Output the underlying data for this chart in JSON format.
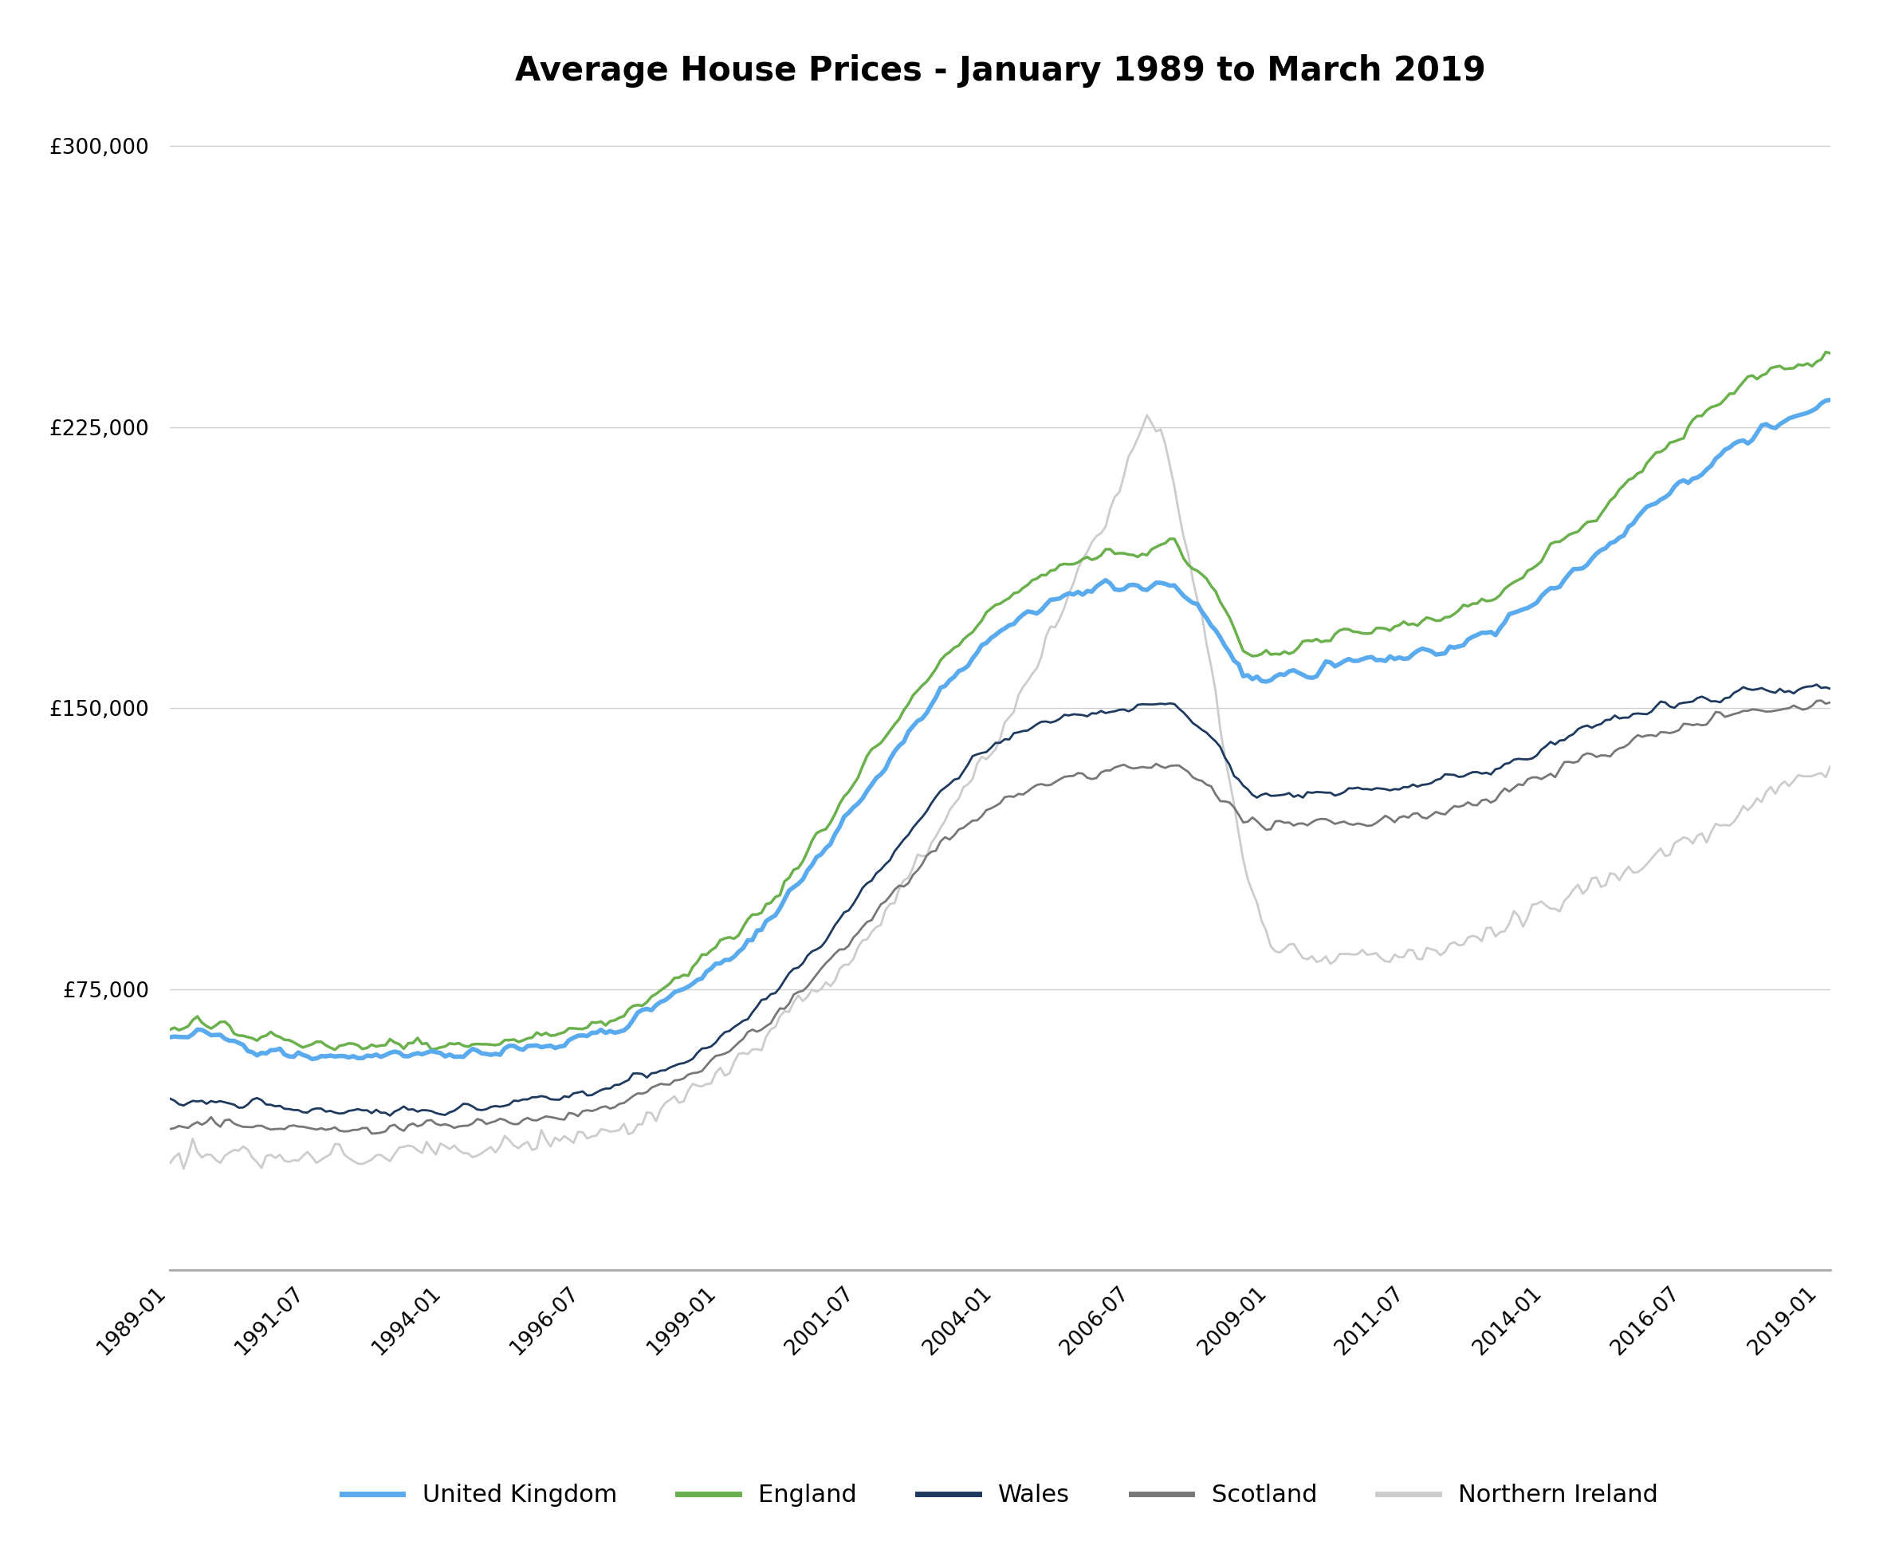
{
  "title": "Average House Prices - January 1989 to March 2019",
  "title_fontsize": 30,
  "background_color": "#ffffff",
  "ylim": [
    0,
    310000
  ],
  "grid_color": "#cccccc",
  "legend_labels": [
    "United Kingdom",
    "England",
    "Wales",
    "Scotland",
    "Northern Ireland"
  ],
  "legend_colors": [
    "#5aabee",
    "#6ab04c",
    "#1e3a5f",
    "#777777",
    "#cccccc"
  ],
  "line_widths": [
    4.0,
    2.5,
    2.0,
    2.0,
    2.0
  ],
  "tick_label_fontsize": 19,
  "legend_fontsize": 22,
  "xtick_labels": [
    "1989-01",
    "1991-07",
    "1994-01",
    "1996-07",
    "1999-01",
    "2001-07",
    "2004-01",
    "2006-07",
    "2009-01",
    "2011-07",
    "2014-01",
    "2016-07",
    "2019-01"
  ]
}
